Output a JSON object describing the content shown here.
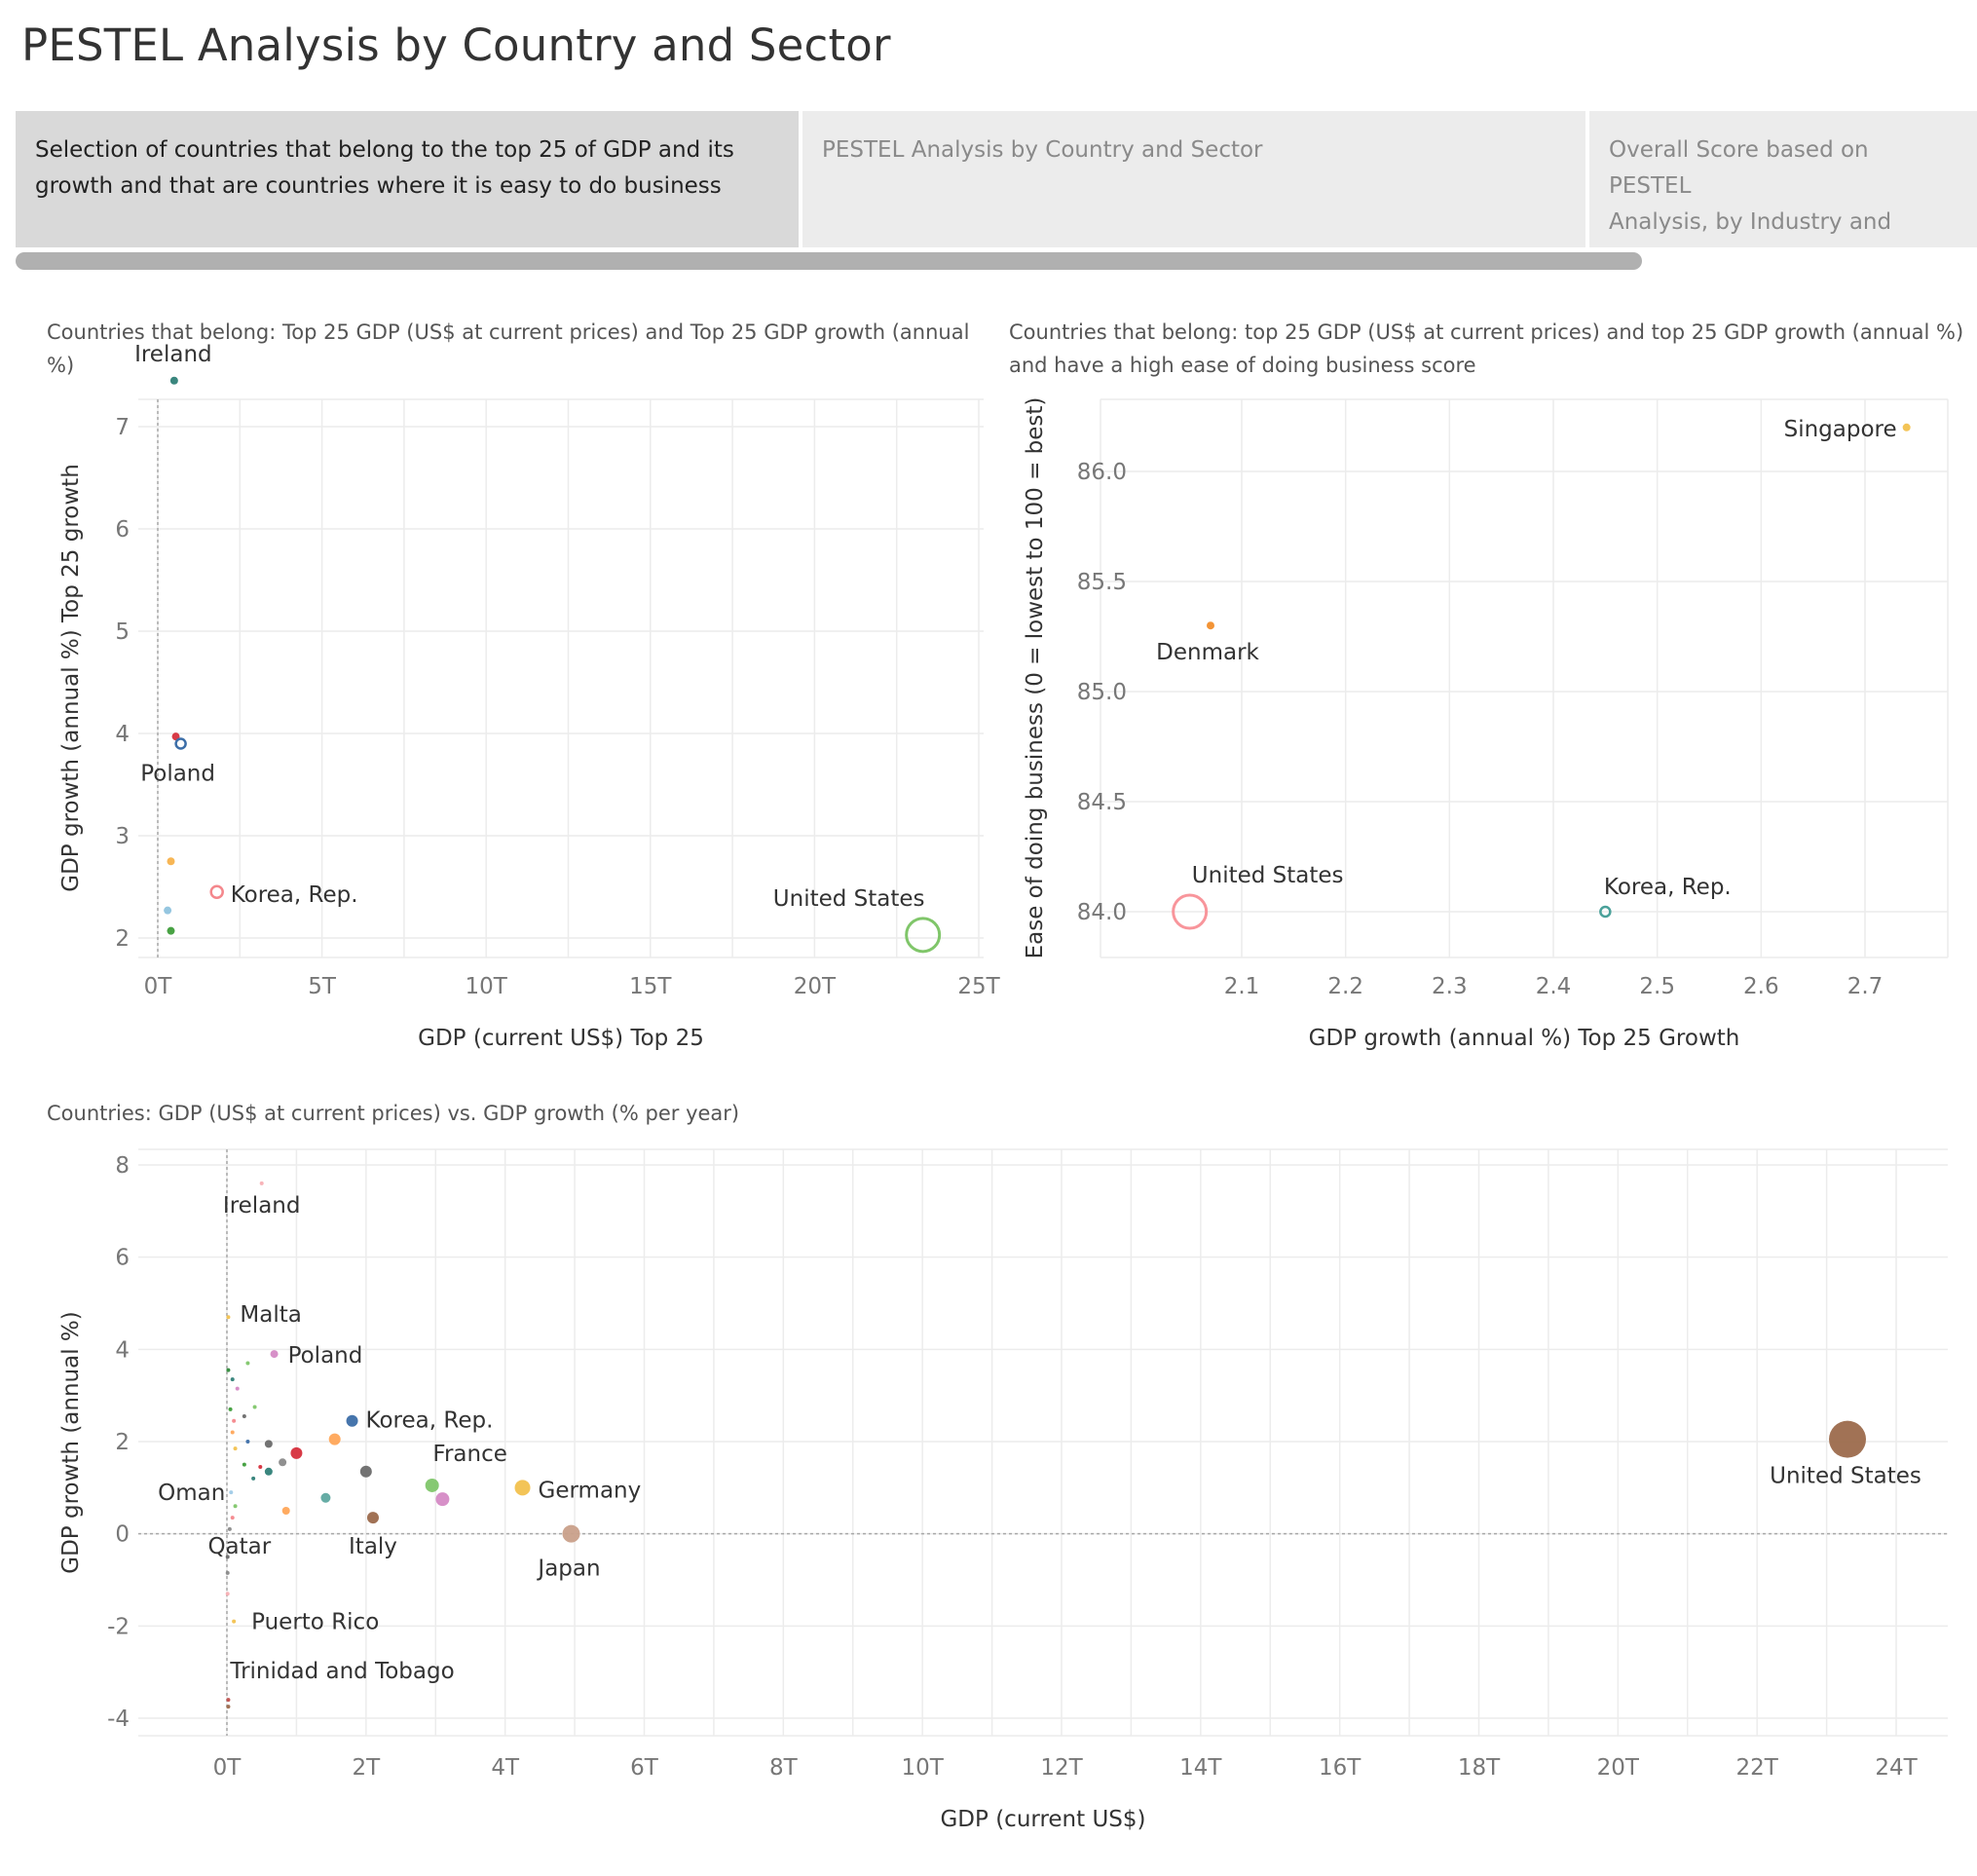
{
  "page": {
    "title": "PESTEL Analysis by Country and Sector"
  },
  "tabs": [
    {
      "label": "Selection of countries that belong to the top 25 of GDP and its growth and that are countries where it is easy to do business",
      "lines": [
        "Selection of countries that belong to the top 25 of GDP and its",
        "growth and that are countries where it is easy to do business"
      ],
      "active": true
    },
    {
      "label": "PESTEL Analysis by Country and Sector",
      "lines": [
        "PESTEL Analysis by Country and Sector"
      ],
      "active": false
    },
    {
      "label": "Overall Score based on PESTEL Analysis, by Industry and Count..",
      "lines": [
        "Overall Score based on PESTEL",
        "Analysis, by Industry and Count.."
      ],
      "active": false
    }
  ],
  "chart_data": [
    {
      "type": "scatter",
      "title": "Countries that belong: Top 25 GDP (US$ at current prices) and Top 25 GDP growth (annual %)",
      "title_lines": [
        "Countries that belong: Top 25 GDP (US$ at current prices) and Top 25 GDP growth (annual",
        "%)"
      ],
      "xlabel": "GDP (current US$) Top 25",
      "ylabel": "GDP growth (annual %) Top 25 growth",
      "xlim": [
        -0.9,
        25.1
      ],
      "ylim": [
        1.55,
        7.75
      ],
      "xticks": [
        0,
        5,
        10,
        15,
        20,
        25
      ],
      "xtick_labels": [
        "0T",
        "5T",
        "10T",
        "15T",
        "20T",
        "25T"
      ],
      "yticks": [
        2,
        3,
        4,
        5,
        6,
        7
      ],
      "ytick_labels": [
        "2",
        "3",
        "4",
        "5",
        "6",
        "7"
      ],
      "grid": true,
      "zero_line_x": 0,
      "points": [
        {
          "x": 0.5,
          "y": 7.45,
          "label": "Ireland",
          "color": "#2f8077",
          "size": 4,
          "filled": true
        },
        {
          "x": 0.55,
          "y": 3.97,
          "label": "",
          "color": "#d62f3c",
          "size": 4,
          "filled": true
        },
        {
          "x": 0.7,
          "y": 3.9,
          "label": "Poland",
          "color": "#3c6ea8",
          "size": 5,
          "filled": false
        },
        {
          "x": 0.4,
          "y": 2.75,
          "label": "",
          "color": "#f7b24c",
          "size": 4,
          "filled": true
        },
        {
          "x": 1.8,
          "y": 2.45,
          "label": "Korea, Rep.",
          "color": "#f4878c",
          "size": 6,
          "filled": false
        },
        {
          "x": 0.3,
          "y": 2.27,
          "label": "",
          "color": "#8fc3de",
          "size": 4,
          "filled": true
        },
        {
          "x": 0.4,
          "y": 2.07,
          "label": "",
          "color": "#3e9d3a",
          "size": 4,
          "filled": true
        },
        {
          "x": 23.3,
          "y": 2.03,
          "label": "United States",
          "color": "#80c66a",
          "size": 17,
          "filled": false
        }
      ]
    },
    {
      "type": "scatter",
      "title": "Countries that belong: top 25 GDP (US$ at current prices) and top 25 GDP growth (annual %) and have a high ease of doing business score",
      "title_lines": [
        "Countries that belong: top 25 GDP (US$ at current prices) and top 25 GDP growth (annual %)",
        "and have a high ease of doing business score"
      ],
      "xlabel": "GDP growth (annual %) Top 25 Growth",
      "ylabel": "Ease of doing business (0 = lowest  to 100 = best)",
      "xlim": [
        2.0,
        2.765
      ],
      "ylim": [
        83.9,
        86.35
      ],
      "xticks": [
        2.1,
        2.2,
        2.3,
        2.4,
        2.5,
        2.6,
        2.7
      ],
      "xtick_labels": [
        "2.1",
        "2.2",
        "2.3",
        "2.4",
        "2.5",
        "2.6",
        "2.7"
      ],
      "yticks": [
        84.0,
        84.5,
        85.0,
        85.5,
        86.0
      ],
      "ytick_labels": [
        "84.0",
        "84.5",
        "85.0",
        "85.5",
        "86.0"
      ],
      "grid": true,
      "points": [
        {
          "x": 2.74,
          "y": 86.2,
          "label": "Singapore",
          "color": "#f2c14e",
          "size": 4,
          "filled": true
        },
        {
          "x": 2.07,
          "y": 85.3,
          "label": "Denmark",
          "color": "#f28e2b",
          "size": 4,
          "filled": true
        },
        {
          "x": 2.05,
          "y": 84.0,
          "label": "United States",
          "color": "#f8959b",
          "size": 17,
          "filled": false
        },
        {
          "x": 2.45,
          "y": 84.0,
          "label": "Korea, Rep.",
          "color": "#4aa19a",
          "size": 5,
          "filled": false
        }
      ]
    },
    {
      "type": "scatter",
      "title": "Countries: GDP (US$ at current prices) vs. GDP growth (% per year)",
      "xlabel": "GDP (current US$)",
      "ylabel": "GDP growth (annual %)",
      "xlim": [
        -1.35,
        24.8
      ],
      "ylim": [
        -4.4,
        8.2
      ],
      "xticks": [
        0,
        2,
        4,
        6,
        8,
        10,
        12,
        14,
        16,
        18,
        20,
        22,
        24
      ],
      "xtick_labels": [
        "0T",
        "2T",
        "4T",
        "6T",
        "8T",
        "10T",
        "12T",
        "14T",
        "16T",
        "18T",
        "20T",
        "22T",
        "24T"
      ],
      "yticks": [
        -4,
        -2,
        0,
        2,
        4,
        6,
        8
      ],
      "ytick_labels": [
        "-4",
        "-2",
        "0",
        "2",
        "4",
        "6",
        "8"
      ],
      "grid": true,
      "zero_line_x": 0,
      "zero_line_y": 0,
      "points": [
        {
          "x": 0.5,
          "y": 7.6,
          "label": "Ireland",
          "color": "#f8b0b5",
          "size": 2,
          "filled": true
        },
        {
          "x": 0.02,
          "y": 4.7,
          "label": "Malta",
          "color": "#f2c14e",
          "size": 2,
          "filled": true
        },
        {
          "x": 0.68,
          "y": 3.9,
          "label": "Poland",
          "color": "#d58ac5",
          "size": 4,
          "filled": true
        },
        {
          "x": 1.8,
          "y": 2.45,
          "label": "Korea, Rep.",
          "color": "#3c6ea8",
          "size": 6,
          "filled": true
        },
        {
          "x": 1.55,
          "y": 2.05,
          "label": "",
          "color": "#ffa658",
          "size": 6,
          "filled": true
        },
        {
          "x": 1.0,
          "y": 1.75,
          "label": "",
          "color": "#d62f3c",
          "size": 6,
          "filled": true
        },
        {
          "x": 0.6,
          "y": 1.95,
          "label": "",
          "color": "#6b6b6b",
          "size": 4,
          "filled": true
        },
        {
          "x": 0.8,
          "y": 1.55,
          "label": "",
          "color": "#8a8a8a",
          "size": 4,
          "filled": true
        },
        {
          "x": 0.6,
          "y": 1.35,
          "label": "",
          "color": "#2f8077",
          "size": 4,
          "filled": true
        },
        {
          "x": 2.0,
          "y": 1.35,
          "label": "",
          "color": "#6b6b6b",
          "size": 6,
          "filled": true
        },
        {
          "x": 2.95,
          "y": 1.05,
          "label": "France",
          "color": "#80c66a",
          "size": 7,
          "filled": true
        },
        {
          "x": 4.25,
          "y": 1.0,
          "label": "Germany",
          "color": "#f2c14e",
          "size": 8,
          "filled": true
        },
        {
          "x": 3.1,
          "y": 0.75,
          "label": "",
          "color": "#d58ac5",
          "size": 7,
          "filled": true
        },
        {
          "x": 1.42,
          "y": 0.78,
          "label": "",
          "color": "#5ea8a0",
          "size": 5,
          "filled": true
        },
        {
          "x": 0.85,
          "y": 0.5,
          "label": "",
          "color": "#ffa658",
          "size": 4,
          "filled": true
        },
        {
          "x": 0.06,
          "y": 0.9,
          "label": "Oman",
          "color": "#a0cbe8",
          "size": 2,
          "filled": true
        },
        {
          "x": 0.04,
          "y": 0.1,
          "label": "Qatar",
          "color": "#8a8a8a",
          "size": 2,
          "filled": true
        },
        {
          "x": 2.1,
          "y": 0.35,
          "label": "Italy",
          "color": "#9c6a4c",
          "size": 6,
          "filled": true
        },
        {
          "x": 4.95,
          "y": 0.0,
          "label": "Japan",
          "color": "#c9a08a",
          "size": 9,
          "filled": true
        },
        {
          "x": 0.1,
          "y": -1.9,
          "label": "Puerto Rico",
          "color": "#f2c14e",
          "size": 2,
          "filled": true
        },
        {
          "x": 0.02,
          "y": -3.6,
          "label": "Trinidad and Tobago",
          "color": "#c0504d",
          "size": 2,
          "filled": true
        },
        {
          "x": 23.3,
          "y": 2.05,
          "label": "United States",
          "color": "#9c6a4c",
          "size": 19,
          "filled": true
        },
        {
          "x": 0.02,
          "y": 3.55,
          "label": "",
          "color": "#2f8a3a",
          "size": 2,
          "filled": true
        },
        {
          "x": 0.08,
          "y": 3.35,
          "label": "",
          "color": "#2f8077",
          "size": 2,
          "filled": true
        },
        {
          "x": 0.15,
          "y": 3.15,
          "label": "",
          "color": "#d58ac5",
          "size": 2,
          "filled": true
        },
        {
          "x": 0.3,
          "y": 3.7,
          "label": "",
          "color": "#80c66a",
          "size": 2,
          "filled": true
        },
        {
          "x": 0.4,
          "y": 2.75,
          "label": "",
          "color": "#80c66a",
          "size": 2,
          "filled": true
        },
        {
          "x": 0.25,
          "y": 2.55,
          "label": "",
          "color": "#6b6b6b",
          "size": 2,
          "filled": true
        },
        {
          "x": 0.05,
          "y": 2.7,
          "label": "",
          "color": "#3e9d3a",
          "size": 2,
          "filled": true
        },
        {
          "x": 0.1,
          "y": 2.45,
          "label": "",
          "color": "#f4878c",
          "size": 2,
          "filled": true
        },
        {
          "x": 0.08,
          "y": 2.2,
          "label": "",
          "color": "#ffa658",
          "size": 2,
          "filled": true
        },
        {
          "x": 0.3,
          "y": 2.0,
          "label": "",
          "color": "#3c6ea8",
          "size": 2,
          "filled": true
        },
        {
          "x": 0.12,
          "y": 1.85,
          "label": "",
          "color": "#f2c14e",
          "size": 2,
          "filled": true
        },
        {
          "x": 0.25,
          "y": 1.5,
          "label": "",
          "color": "#3e9d3a",
          "size": 2,
          "filled": true
        },
        {
          "x": 0.48,
          "y": 1.45,
          "label": "",
          "color": "#d62f3c",
          "size": 2,
          "filled": true
        },
        {
          "x": 0.38,
          "y": 1.2,
          "label": "",
          "color": "#2f8077",
          "size": 2,
          "filled": true
        },
        {
          "x": 0.12,
          "y": 0.6,
          "label": "",
          "color": "#80c66a",
          "size": 2,
          "filled": true
        },
        {
          "x": 0.08,
          "y": 0.35,
          "label": "",
          "color": "#f4878c",
          "size": 2,
          "filled": true
        },
        {
          "x": 0.01,
          "y": -0.5,
          "label": "",
          "color": "#6b6b6b",
          "size": 2,
          "filled": true
        },
        {
          "x": 0.01,
          "y": -0.85,
          "label": "",
          "color": "#8a8a8a",
          "size": 2,
          "filled": true
        },
        {
          "x": 0.01,
          "y": -1.3,
          "label": "",
          "color": "#f8b0b5",
          "size": 2,
          "filled": true
        },
        {
          "x": 0.02,
          "y": -3.75,
          "label": "",
          "color": "#9c6a4c",
          "size": 2,
          "filled": true
        }
      ]
    }
  ]
}
